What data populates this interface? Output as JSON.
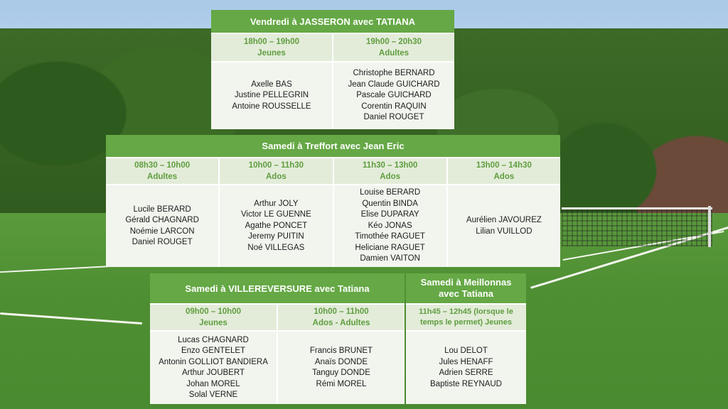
{
  "friday": {
    "title": "Vendredi à JASSERON avec TATIANA",
    "slots": [
      {
        "time": "18h00 – 19h00",
        "group": "Jeunes",
        "players": [
          "Axelle BAS",
          "Justine PELLEGRIN",
          "Antoine ROUSSELLE"
        ]
      },
      {
        "time": "19h00 – 20h30",
        "group": "Adultes",
        "players": [
          "Christophe BERNARD",
          "Jean Claude GUICHARD",
          "Pascale GUICHARD",
          "Corentin RAQUIN",
          "Daniel ROUGET"
        ]
      }
    ]
  },
  "saturday_treffort": {
    "title": "Samedi à Treffort avec Jean Eric",
    "slots": [
      {
        "time": "08h30 – 10h00",
        "group": "Adultes",
        "players": [
          "Lucile BERARD",
          "Gérald CHAGNARD",
          "Noémie LARCON",
          "Daniel ROUGET"
        ]
      },
      {
        "time": "10h00 – 11h30",
        "group": "Ados",
        "players": [
          "Arthur JOLY",
          "Victor LE GUENNE",
          "Agathe PONCET",
          "Jeremy PUITIN",
          "Noé VILLEGAS"
        ]
      },
      {
        "time": "11h30 – 13h00",
        "group": "Ados",
        "players": [
          "Louise BERARD",
          "Quentin BINDA",
          "Elise DUPARAY",
          "Kéo JONAS",
          "Timothée RAGUET",
          "Heliciane RAGUET",
          "Damien VAITON"
        ]
      },
      {
        "time": "13h00 – 14h30",
        "group": "Ados",
        "players": [
          "Aurélien JAVOUREZ",
          "Lilian VUILLOD"
        ]
      }
    ]
  },
  "saturday_villereversure": {
    "title": "Samedi à VILLEREVERSURE avec Tatiana",
    "slots": [
      {
        "time": "09h00 – 10h00",
        "group": "Jeunes",
        "players": [
          "Lucas CHAGNARD",
          "Enzo GENTELET",
          "Antonin GOLLIOT BANDIERA",
          "Arthur JOUBERT",
          "Johan MOREL",
          "Solal VERNE"
        ]
      },
      {
        "time": "10h00 – 11h00",
        "group": "Ados - Adultes",
        "players": [
          "Francis BRUNET",
          "Anaïs DONDE",
          "Tanguy DONDE",
          "Rémi MOREL"
        ]
      }
    ]
  },
  "saturday_meillonnas": {
    "title_line1": "Samedi à Meillonnas",
    "title_line2": "avec Tatiana",
    "slot": {
      "time_line1": "11h45 – 12h45 (lorsque le",
      "time_line2": "temps le permet) Jeunes",
      "players": [
        "Lou DELOT",
        "Jules HENAFF",
        "Adrien SERRE",
        "Baptiste REYNAUD"
      ]
    }
  },
  "colors": {
    "header_green": "#65a845",
    "slot_bg": "#e3ecd9",
    "slot_text": "#5f9d3f",
    "names_bg": "#f2f5ee"
  }
}
